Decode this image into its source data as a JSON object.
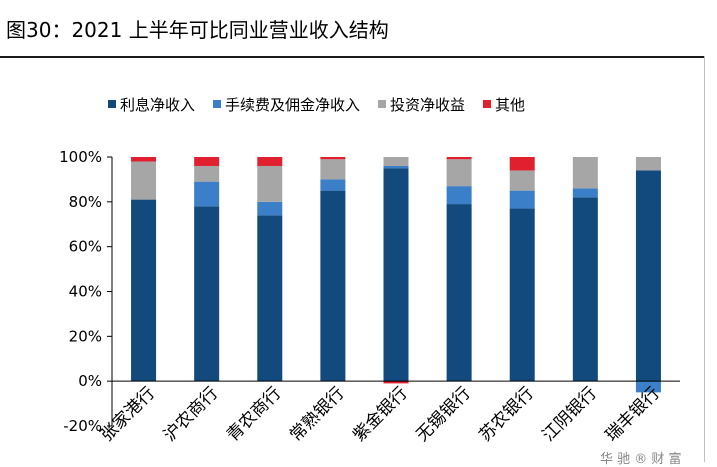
{
  "title": "图30：2021 上半年可比同业营业收入结构",
  "footer_fragment": "华 驰 ® 财 富",
  "chart_data": {
    "type": "bar",
    "stacked": true,
    "categories": [
      "张家港行",
      "沪农商行",
      "青农商行",
      "常熟银行",
      "紫金银行",
      "无锡银行",
      "苏农银行",
      "江阴银行",
      "瑞丰银行"
    ],
    "series": [
      {
        "name": "利息净收入",
        "color": "#124a7e",
        "values": [
          81,
          78,
          74,
          85,
          95,
          79,
          77,
          82,
          94
        ]
      },
      {
        "name": "手续费及佣金净收入",
        "color": "#3a7fc7",
        "values": [
          0,
          11,
          6,
          5,
          1,
          8,
          8,
          4,
          -5
        ]
      },
      {
        "name": "投资净收益",
        "color": "#a6a6a6",
        "values": [
          17,
          7,
          16,
          9,
          4,
          12,
          9,
          14,
          6
        ]
      },
      {
        "name": "其他",
        "color": "#e0202e",
        "values": [
          2,
          4,
          4,
          1,
          -1,
          1,
          6,
          0,
          0
        ]
      }
    ],
    "ylim": [
      -20,
      100
    ],
    "yticks": [
      -20,
      0,
      20,
      40,
      60,
      80,
      100
    ],
    "ytick_labels": [
      "-20%",
      "0%",
      "20%",
      "40%",
      "60%",
      "80%",
      "100%"
    ],
    "legend_position": "top",
    "grid": false
  }
}
